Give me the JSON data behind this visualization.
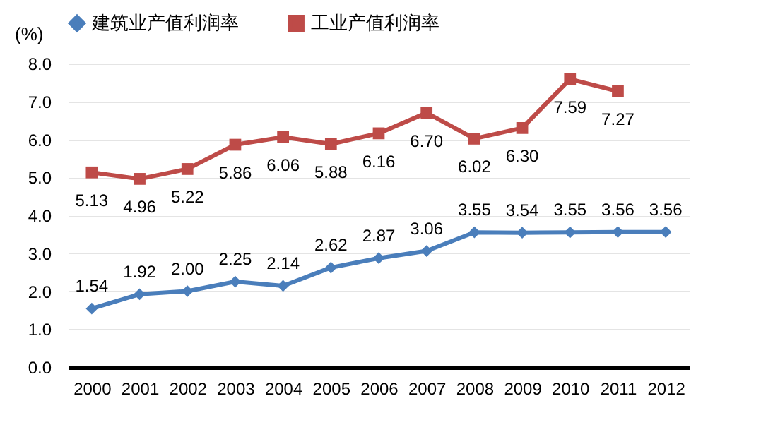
{
  "chart_data": {
    "type": "line",
    "ylabel": "(%)",
    "categories": [
      "2000",
      "2001",
      "2002",
      "2003",
      "2004",
      "2005",
      "2006",
      "2007",
      "2008",
      "2009",
      "2010",
      "2011",
      "2012"
    ],
    "series": [
      {
        "name": "建筑业产值利润率",
        "color": "#4a7ebb",
        "marker": "diamond",
        "values": [
          1.54,
          1.92,
          2.0,
          2.25,
          2.14,
          2.62,
          2.87,
          3.06,
          3.55,
          3.54,
          3.55,
          3.56,
          3.56
        ],
        "value_labels": [
          "1.54",
          "1.92",
          "2.00",
          "2.25",
          "2.14",
          "2.62",
          "2.87",
          "3.06",
          "3.55",
          "3.54",
          "3.55",
          "3.56",
          "3.56"
        ]
      },
      {
        "name": "工业产值利润率",
        "color": "#be4b48",
        "marker": "square",
        "values": [
          5.13,
          4.96,
          5.22,
          5.86,
          6.06,
          5.88,
          6.16,
          6.7,
          6.02,
          6.3,
          7.59,
          7.27,
          null
        ],
        "value_labels": [
          "5.13",
          "4.96",
          "5.22",
          "5.86",
          "6.06",
          "5.88",
          "6.16",
          "6.70",
          "6.02",
          "6.30",
          "7.59",
          "7.27",
          null
        ]
      }
    ],
    "ylim": [
      0,
      8
    ],
    "yticks": [
      {
        "value": 0,
        "label": "0.0"
      },
      {
        "value": 1,
        "label": "1.0"
      },
      {
        "value": 2,
        "label": "2.0"
      },
      {
        "value": 3,
        "label": "3.0"
      },
      {
        "value": 4,
        "label": "4.0"
      },
      {
        "value": 5,
        "label": "5.0"
      },
      {
        "value": 6,
        "label": "6.0"
      },
      {
        "value": 7,
        "label": "7.0"
      },
      {
        "value": 8,
        "label": "8.0"
      }
    ],
    "grid": "y",
    "legend": "top",
    "line_style": "solid"
  }
}
